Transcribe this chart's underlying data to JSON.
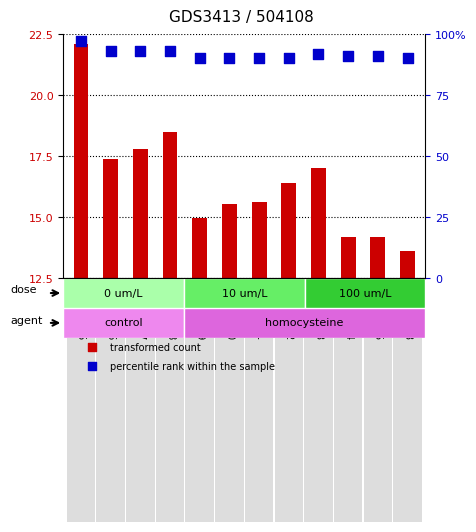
{
  "title": "GDS3413 / 504108",
  "samples": [
    "GSM240525",
    "GSM240526",
    "GSM240527",
    "GSM240528",
    "GSM240529",
    "GSM240530",
    "GSM240531",
    "GSM240532",
    "GSM240533",
    "GSM240534",
    "GSM240535",
    "GSM240848"
  ],
  "transformed_count": [
    22.1,
    17.4,
    17.8,
    18.5,
    14.95,
    15.55,
    15.6,
    16.4,
    17.0,
    14.2,
    14.2,
    13.6
  ],
  "percentile_rank": [
    97,
    93,
    93,
    93,
    90,
    90,
    90,
    90,
    92,
    91,
    91,
    90
  ],
  "ylim_left": [
    12.5,
    22.5
  ],
  "ylim_right": [
    0,
    100
  ],
  "yticks_left": [
    12.5,
    15.0,
    17.5,
    20.0,
    22.5
  ],
  "yticks_right": [
    0,
    25,
    50,
    75,
    100
  ],
  "bar_color": "#cc0000",
  "dot_color": "#0000cc",
  "dot_size": 60,
  "gridline_style": "dotted",
  "gridline_color": "#000000",
  "dose_groups": [
    {
      "label": "0 um/L",
      "start": 0,
      "end": 4,
      "color": "#aaffaa"
    },
    {
      "label": "10 um/L",
      "start": 4,
      "end": 8,
      "color": "#66ee66"
    },
    {
      "label": "100 um/L",
      "start": 8,
      "end": 12,
      "color": "#33cc33"
    }
  ],
  "agent_groups": [
    {
      "label": "control",
      "start": 0,
      "end": 4,
      "color": "#ee88ee"
    },
    {
      "label": "homocysteine",
      "start": 4,
      "end": 12,
      "color": "#dd66dd"
    }
  ],
  "dose_label": "dose",
  "agent_label": "agent",
  "legend_items": [
    {
      "color": "#cc0000",
      "marker": "s",
      "label": "transformed count"
    },
    {
      "color": "#0000cc",
      "marker": "s",
      "label": "percentile rank within the sample"
    }
  ],
  "bar_width": 0.5,
  "left_ylabel_color": "#cc0000",
  "right_ylabel_color": "#0000cc"
}
